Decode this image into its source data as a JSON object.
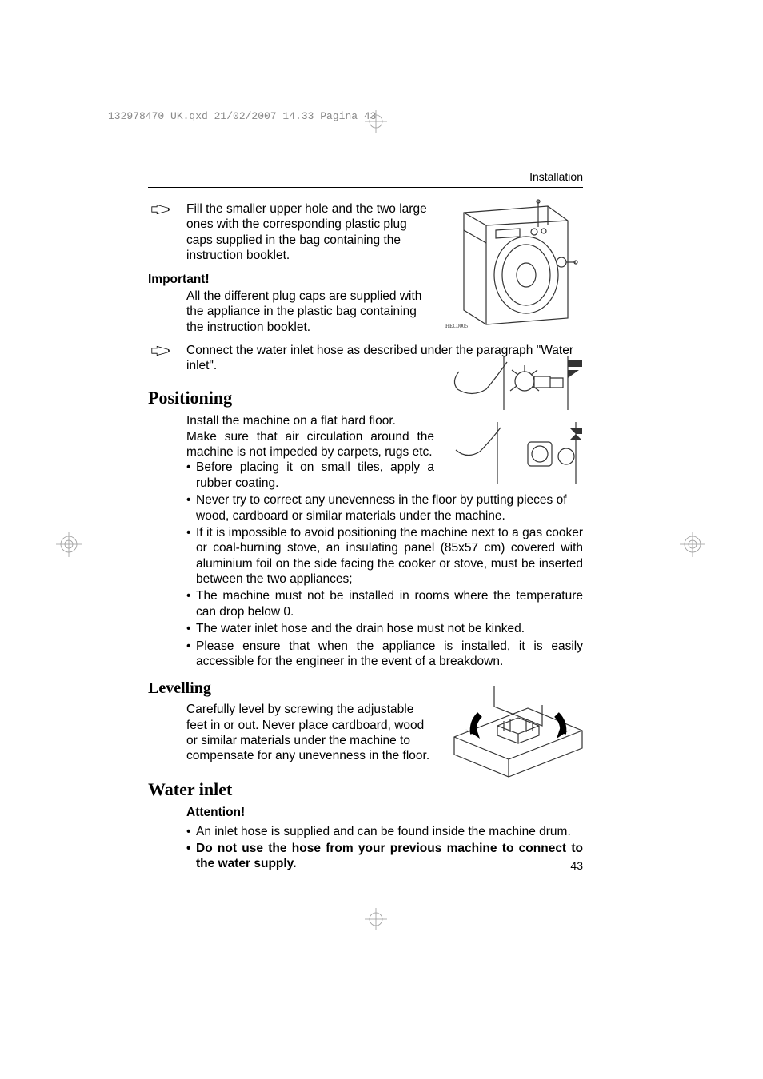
{
  "print_header": "132978470 UK.qxd  21/02/2007  14.33  Pagina  43",
  "running_head": "Installation",
  "page_number": "43",
  "fig1_label": "HEC0005",
  "para1": "Fill the smaller upper hole and the two large ones with the corresponding plastic plug caps supplied in the bag containing the instruction booklet.",
  "important_label": "Important!",
  "important_text": "All the different plug caps are supplied with the appliance in the plastic bag containing the instruction booklet.",
  "para2": "Connect the water inlet hose as described under the paragraph \"Water inlet\".",
  "h_positioning": "Positioning",
  "positioning_intro1": "Install the machine on a flat hard floor.",
  "positioning_intro2": "Make sure that air circulation around the machine is not impeded by carpets, rugs etc.",
  "pos_bullets": [
    "Before placing it on small tiles, apply a rubber coating.",
    "Never try to correct any unevenness in the floor by putting pieces of wood, cardboard or similar materials under the machine.",
    "If it is impossible to avoid positioning the machine next to a gas cooker or coal-burning stove, an insulating panel (85x57 cm) covered with aluminium foil on the side facing the cooker or stove, must be inserted between the two appliances;",
    "The machine must not be installed in rooms where the temperature can drop below 0.",
    "The water inlet hose and the drain hose must not be kinked.",
    "Please ensure that when the appliance is installed, it is easily accessible for the engineer in the event of a breakdown."
  ],
  "h_levelling": "Levelling",
  "levelling_text": "Carefully level by screwing the adjustable feet in or out. Never place cardboard, wood or similar materials under the machine to compensate for any unevenness in the floor.",
  "h_waterinlet": "Water inlet",
  "attention_label": "Attention!",
  "wi_bullet1": "An inlet hose is supplied and can be found inside the machine drum.",
  "wi_bullet2": "Do not use the hose from your previous machine to connect to the water supply."
}
